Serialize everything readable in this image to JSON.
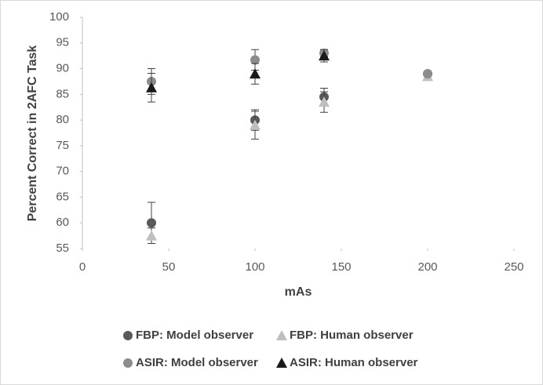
{
  "chart_data": {
    "type": "scatter",
    "x_label": "mAs",
    "y_label": "Percent Correct in 2AFC Task",
    "xlim": [
      0,
      250
    ],
    "xticks": [
      0,
      50,
      100,
      150,
      200,
      250
    ],
    "ylim": [
      55,
      100
    ],
    "yticks": [
      55,
      60,
      65,
      70,
      75,
      80,
      85,
      90,
      95,
      100
    ],
    "series": [
      {
        "name": "FBP: Model observer",
        "color": "#595959",
        "marker": "circle",
        "x": [
          40,
          100,
          140,
          200
        ],
        "values": [
          60,
          80,
          84.5,
          89
        ],
        "errors": [
          4,
          2,
          1.7,
          null
        ]
      },
      {
        "name": "FBP: Human observer",
        "color": "#bfbfbf",
        "marker": "triangle",
        "x": [
          40,
          100,
          140,
          200
        ],
        "values": [
          57.5,
          79,
          83.5,
          88.5
        ],
        "errors": [
          1.5,
          2.7,
          2,
          null
        ]
      },
      {
        "name": "ASIR: Model observer",
        "color": "#8c8c8c",
        "marker": "circle",
        "x": [
          40,
          100,
          140,
          200
        ],
        "values": [
          87.5,
          91.7,
          93,
          89
        ],
        "errors": [
          2.5,
          2,
          0.7,
          null
        ]
      },
      {
        "name": "ASIR: Human observer",
        "color": "#1a1a1a",
        "marker": "triangle",
        "x": [
          40,
          100,
          140
        ],
        "values": [
          86.3,
          89,
          92.5
        ],
        "errors": [
          2.8,
          2,
          1.2
        ]
      }
    ]
  }
}
